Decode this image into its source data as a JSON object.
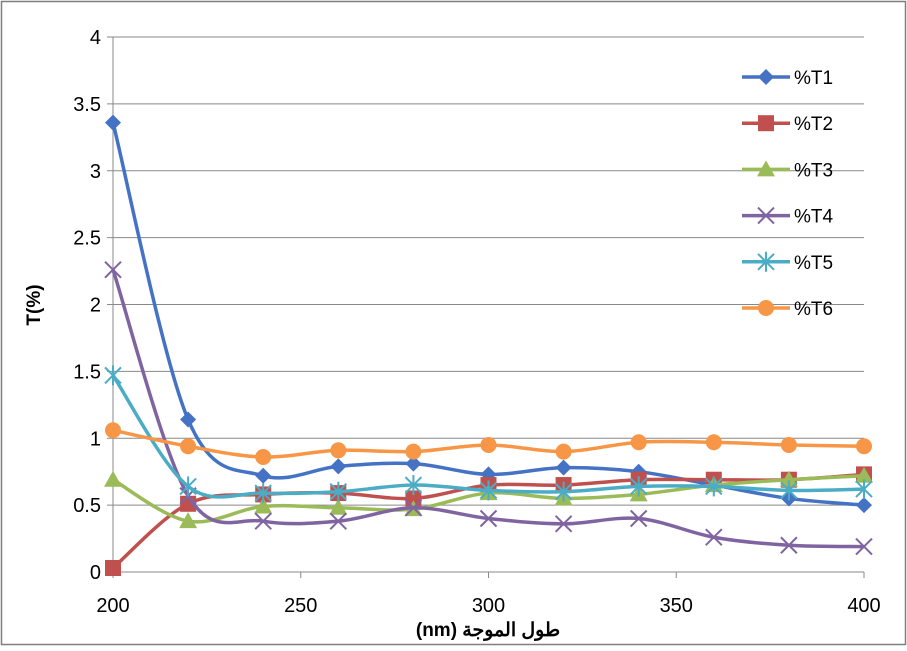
{
  "chart_data": {
    "type": "line",
    "title": "",
    "xlabel": "طول الموجة (nm)",
    "ylabel": "T(%)",
    "xlim": [
      200,
      400
    ],
    "ylim": [
      0,
      4
    ],
    "x_ticks": [
      200,
      250,
      300,
      350,
      400
    ],
    "y_ticks": [
      0,
      0.5,
      1,
      1.5,
      2,
      2.5,
      3,
      3.5,
      4
    ],
    "y_tick_labels": [
      "0",
      "0.5",
      "1",
      "1.5",
      "2",
      "2.5",
      "3",
      "3.5",
      "4"
    ],
    "grid": true,
    "legend_position": "right",
    "smooth": true,
    "x": [
      200,
      220,
      240,
      260,
      280,
      300,
      320,
      340,
      360,
      380,
      400
    ],
    "series": [
      {
        "name": "%T1",
        "color": "#4472C4",
        "marker": "diamond",
        "values": [
          3.36,
          1.14,
          0.72,
          0.79,
          0.81,
          0.73,
          0.78,
          0.75,
          0.65,
          0.55,
          0.5
        ]
      },
      {
        "name": "%T2",
        "color": "#C0504D",
        "marker": "square",
        "values": [
          0.03,
          0.51,
          0.58,
          0.59,
          0.55,
          0.65,
          0.65,
          0.69,
          0.69,
          0.69,
          0.73
        ]
      },
      {
        "name": "%T3",
        "color": "#9BBB59",
        "marker": "triangle",
        "values": [
          0.69,
          0.38,
          0.49,
          0.48,
          0.47,
          0.59,
          0.55,
          0.58,
          0.65,
          0.69,
          0.72
        ]
      },
      {
        "name": "%T4",
        "color": "#8064A2",
        "marker": "x",
        "values": [
          2.26,
          0.57,
          0.38,
          0.38,
          0.48,
          0.4,
          0.36,
          0.4,
          0.26,
          0.2,
          0.19
        ]
      },
      {
        "name": "%T5",
        "color": "#4BACC6",
        "marker": "star",
        "values": [
          1.47,
          0.64,
          0.59,
          0.6,
          0.65,
          0.61,
          0.6,
          0.64,
          0.64,
          0.61,
          0.62
        ]
      },
      {
        "name": "%T6",
        "color": "#F79646",
        "marker": "circle",
        "values": [
          1.06,
          0.94,
          0.86,
          0.91,
          0.9,
          0.95,
          0.9,
          0.97,
          0.97,
          0.95,
          0.94
        ]
      }
    ]
  }
}
